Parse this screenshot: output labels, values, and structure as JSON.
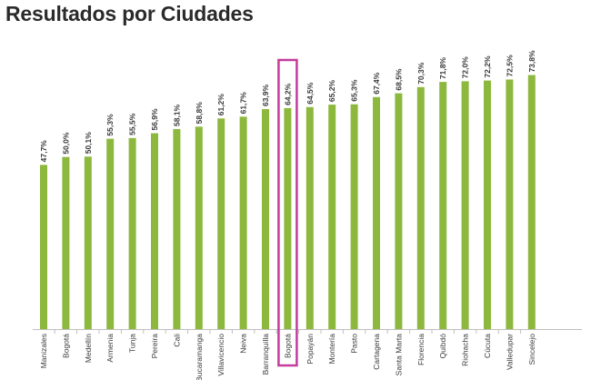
{
  "page": {
    "title": "Resultados por Ciudades"
  },
  "chart_data": {
    "type": "bar",
    "title": "Resultados por Ciudades",
    "xlabel": "",
    "ylabel": "",
    "ylim": [
      0,
      75
    ],
    "grid": false,
    "bar_color": "#8db83e",
    "highlight_color": "#c43c9c",
    "highlighted_category": "Bogotá",
    "categories": [
      "Manizales",
      "Bogotá",
      "Medellín",
      "Armenia",
      "Tunja",
      "Pereira",
      "Cali",
      "Bucaramanga",
      "Villavicencio",
      "Neiva",
      "Barranquilla",
      "Bogotá",
      "Popayán",
      "Montería",
      "Pasto",
      "Cartagena",
      "Santa Marta",
      "Florencia",
      "Quibdó",
      "Riohacha",
      "Cúcuta",
      "Valledupar",
      "Sincelejo"
    ],
    "values": [
      47.7,
      50.0,
      50.1,
      55.3,
      55.5,
      56.9,
      58.1,
      58.8,
      61.2,
      61.7,
      63.9,
      64.2,
      64.5,
      65.2,
      65.3,
      67.4,
      68.5,
      70.3,
      71.8,
      72.0,
      72.2,
      72.5,
      73.8
    ],
    "labels": [
      "47,7",
      "50,0",
      "50,1",
      "55,3",
      "55,5",
      "56,9",
      "58,1",
      "58,8",
      "61,2",
      "61,7",
      "63,9",
      "64,2",
      "64,5",
      "65,2",
      "65,3",
      "67,4",
      "68,5",
      "70,3",
      "71,8",
      "72,0",
      "72,2",
      "72,5",
      "73,8"
    ]
  }
}
